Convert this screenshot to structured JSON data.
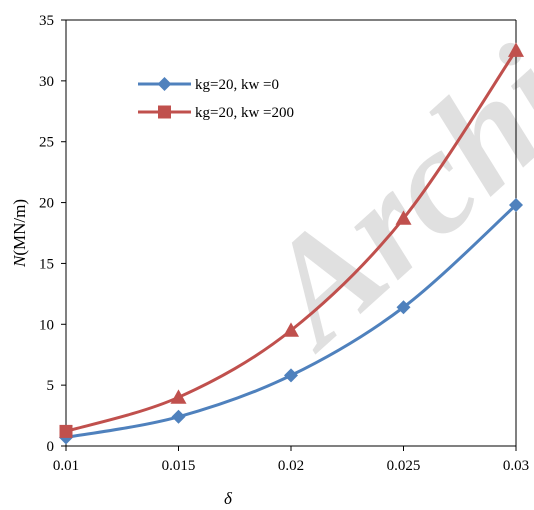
{
  "chart_data": {
    "type": "line",
    "x": [
      0.01,
      0.015,
      0.02,
      0.025,
      0.03
    ],
    "x_tick_labels": [
      "0.01",
      "0.015",
      "0.02",
      "0.025",
      "0.03"
    ],
    "y_ticks": [
      0,
      5,
      10,
      15,
      20,
      25,
      30,
      35
    ],
    "xlim": [
      0.01,
      0.03
    ],
    "ylim": [
      0,
      35
    ],
    "xlabel": "δ",
    "ylabel_var": "N",
    "ylabel_unit": "(MN/m)",
    "grid": false,
    "legend_position": "top-left",
    "series": [
      {
        "name": "kg=20, kw =0",
        "values": [
          0.7,
          2.4,
          5.8,
          11.4,
          19.8
        ],
        "color": "#4f81bd",
        "marker": "diamond"
      },
      {
        "name": "kg=20, kw =200",
        "values": [
          1.2,
          4.0,
          9.5,
          18.7,
          32.5
        ],
        "color": "#c0504d",
        "marker": "triangle",
        "legend_marker": "square"
      }
    ]
  },
  "watermark": "Archive"
}
